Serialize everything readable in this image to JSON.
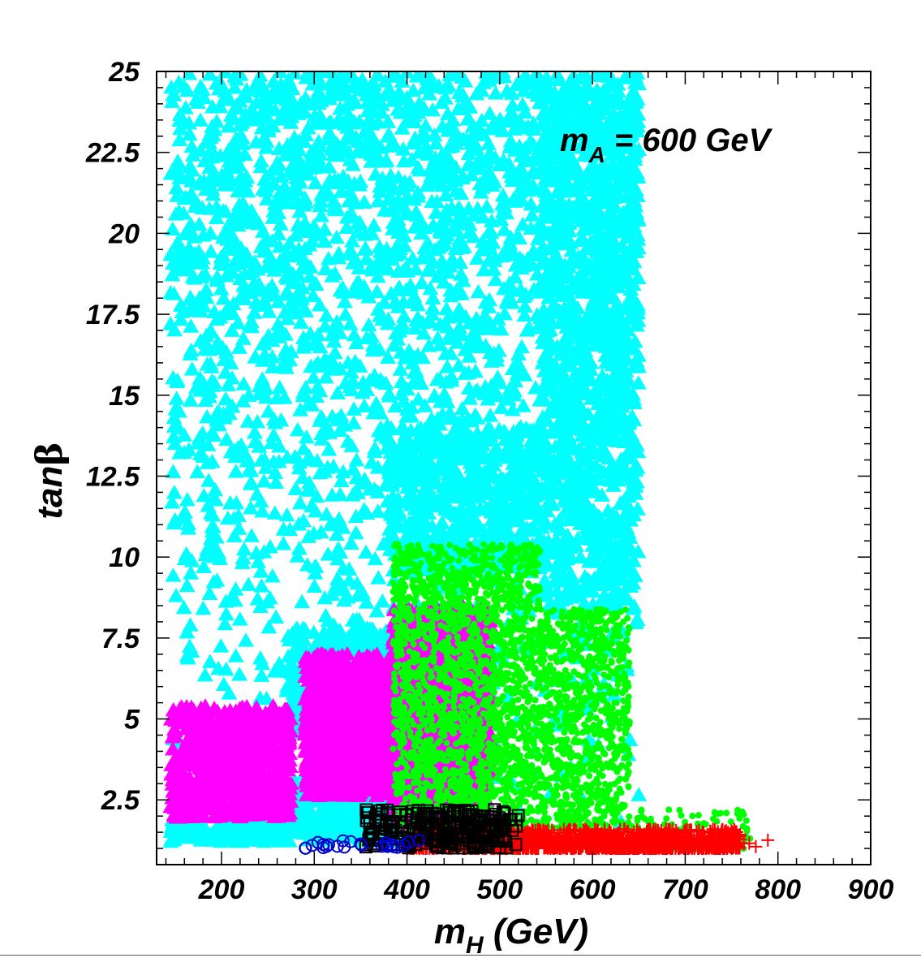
{
  "chart_data": {
    "type": "scatter",
    "xlabel": {
      "main": "m",
      "sub": "H",
      "rest": " (GeV)"
    },
    "ylabel": {
      "main": "tan",
      "greek": "β"
    },
    "annotation": {
      "main": "m",
      "sub": "A",
      "rest": " = 600 GeV"
    },
    "xlim": [
      130,
      900
    ],
    "ylim": [
      0.5,
      25
    ],
    "x_ticks": [
      200,
      300,
      400,
      500,
      600,
      700,
      800,
      900
    ],
    "y_ticks": [
      2.5,
      5,
      7.5,
      10,
      12.5,
      15,
      17.5,
      20,
      22.5,
      25
    ],
    "y_tick_labels": [
      "2.5",
      "5",
      "7.5",
      "10",
      "12.5",
      "15",
      "17.5",
      "20",
      "22.5",
      "25"
    ],
    "grid": false,
    "series": [
      {
        "marker": "triangle-filled",
        "color": "#00ffff",
        "regions": [
          {
            "x": [
              145,
              650
            ],
            "y": [
              1.2,
              25
            ],
            "count": 2600,
            "density": "upper"
          },
          {
            "x": [
              545,
              650
            ],
            "y": [
              8.5,
              25
            ],
            "count": 900
          },
          {
            "x": [
              380,
              545
            ],
            "y": [
              9.5,
              14
            ],
            "count": 500
          },
          {
            "x": [
              275,
              470
            ],
            "y": [
              1.2,
              3.1
            ],
            "count": 500
          },
          {
            "x": [
              145,
              275
            ],
            "y": [
              1.2,
              1.9
            ],
            "count": 160
          },
          {
            "x": [
              270,
              385
            ],
            "y": [
              4.5,
              7.8
            ],
            "count": 400
          }
        ]
      },
      {
        "marker": "triangle-filled",
        "color": "#ff00ff",
        "regions": [
          {
            "x": [
              145,
              275
            ],
            "y": [
              1.9,
              5.4
            ],
            "count": 650
          },
          {
            "x": [
              290,
              385
            ],
            "y": [
              2.6,
              7.0
            ],
            "count": 900
          },
          {
            "x": [
              385,
              490
            ],
            "y": [
              1.5,
              8.5
            ],
            "count": 1100
          }
        ]
      },
      {
        "marker": "circle-filled",
        "color": "#00ff00",
        "regions": [
          {
            "x": [
              385,
              640
            ],
            "y": [
              1.5,
              8.4
            ],
            "count": 2600
          },
          {
            "x": [
              385,
              545
            ],
            "y": [
              8.4,
              10.4
            ],
            "count": 500
          },
          {
            "x": [
              640,
              770
            ],
            "y": [
              1.0,
              2.2
            ],
            "count": 150
          }
        ]
      },
      {
        "marker": "plus",
        "color": "#ff0000",
        "regions": [
          {
            "x": [
              400,
              760
            ],
            "y": [
              1.0,
              1.6
            ],
            "count": 1400
          },
          {
            "x": [
              760,
              810
            ],
            "y": [
              1.0,
              1.3
            ],
            "count": 4
          }
        ]
      },
      {
        "marker": "square-open",
        "color": "#000000",
        "regions": [
          {
            "x": [
              355,
              520
            ],
            "y": [
              1.0,
              2.2
            ],
            "count": 260
          }
        ]
      },
      {
        "marker": "circle-open",
        "color": "#0000cc",
        "regions": [
          {
            "x": [
              290,
              420
            ],
            "y": [
              1.0,
              1.25
            ],
            "count": 25
          }
        ]
      }
    ]
  }
}
